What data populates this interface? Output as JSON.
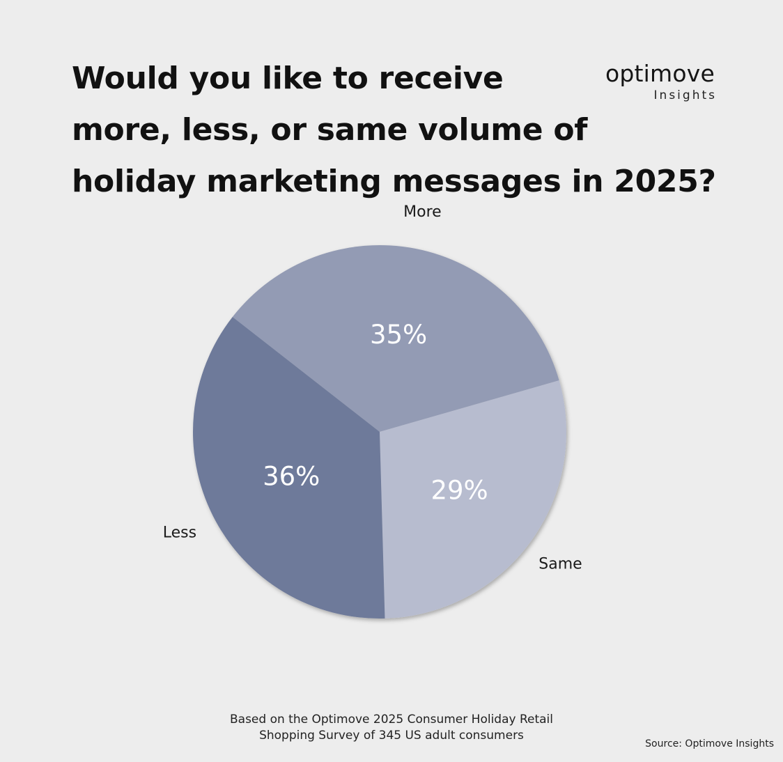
{
  "title_lines": [
    "Would you like to receive",
    "more, less, or same volume of",
    "holiday marketing messages in 2025?"
  ],
  "logo": {
    "name": "optimove",
    "sub": "Insights"
  },
  "chart_data": {
    "type": "pie",
    "title": "Would you like to receive more, less, or same volume of holiday marketing messages in 2025?",
    "slices": [
      {
        "label": "More",
        "value": 35,
        "value_label": "35%",
        "color": "#939bb4"
      },
      {
        "label": "Same",
        "value": 29,
        "value_label": "29%",
        "color": "#b7bccf"
      },
      {
        "label": "Less",
        "value": 36,
        "value_label": "36%",
        "color": "#6e7a9a"
      }
    ]
  },
  "footer": {
    "line1": "Based on the Optimove 2025 Consumer Holiday Retail",
    "line2": "Shopping Survey of 345 US adult consumers"
  },
  "source": "Source: Optimove Insights"
}
